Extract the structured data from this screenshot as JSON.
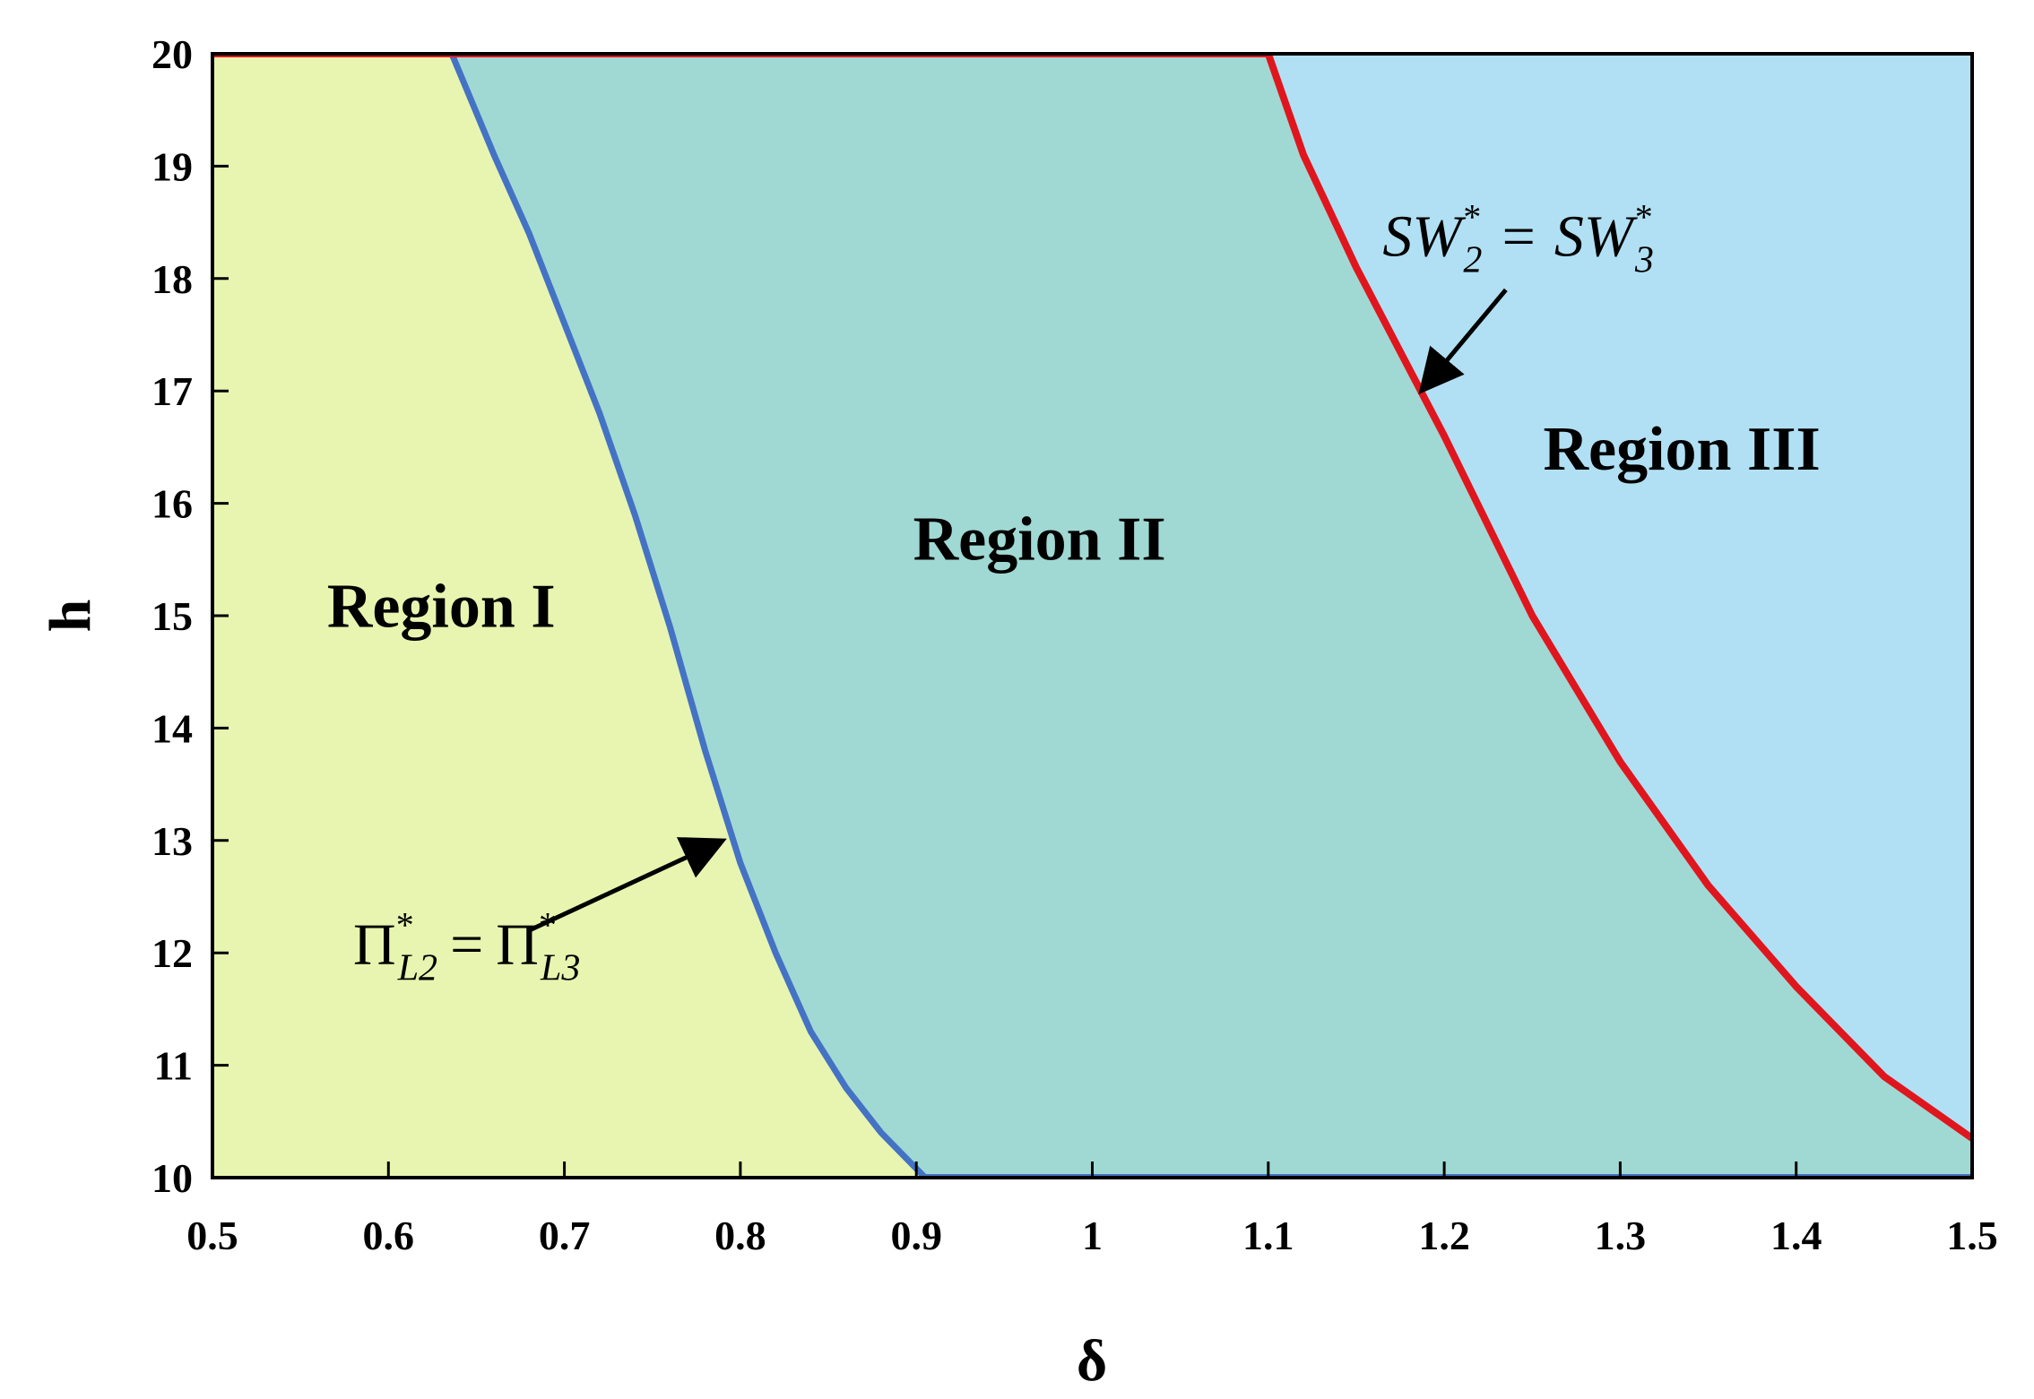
{
  "chart_data": {
    "type": "area",
    "xlabel": "δ",
    "ylabel": "h",
    "xlim": [
      0.5,
      1.5
    ],
    "ylim": [
      10,
      20
    ],
    "x_ticks": [
      "0.5",
      "0.6",
      "0.7",
      "0.8",
      "0.9",
      "1",
      "1.1",
      "1.2",
      "1.3",
      "1.4",
      "1.5"
    ],
    "y_ticks": [
      "10",
      "11",
      "12",
      "13",
      "14",
      "15",
      "16",
      "17",
      "18",
      "19",
      "20"
    ],
    "grid": false,
    "series": [
      {
        "color": "#4472c4",
        "points": [
          [
            0.636,
            20
          ],
          [
            0.66,
            19.1
          ],
          [
            0.68,
            18.4
          ],
          [
            0.7,
            17.6
          ],
          [
            0.72,
            16.8
          ],
          [
            0.74,
            15.9
          ],
          [
            0.76,
            14.9
          ],
          [
            0.78,
            13.8
          ],
          [
            0.8,
            12.8
          ],
          [
            0.82,
            12.0
          ],
          [
            0.84,
            11.3
          ],
          [
            0.86,
            10.8
          ],
          [
            0.88,
            10.4
          ],
          [
            0.905,
            10
          ]
        ]
      },
      {
        "color": "#e0161e",
        "points": [
          [
            1.1,
            20
          ],
          [
            1.12,
            19.1
          ],
          [
            1.15,
            18.1
          ],
          [
            1.18,
            17.2
          ],
          [
            1.2,
            16.6
          ],
          [
            1.25,
            15.0
          ],
          [
            1.3,
            13.7
          ],
          [
            1.35,
            12.6
          ],
          [
            1.4,
            11.7
          ],
          [
            1.45,
            10.9
          ],
          [
            1.5,
            10.35
          ]
        ]
      }
    ],
    "region_colors": {
      "region_1": "#e8f5b0",
      "region_2": "#a0d9d3",
      "region_3": "#b1e0f4"
    },
    "regions": [
      {
        "label": "Region I",
        "x": 0.63,
        "y": 14.9
      },
      {
        "label": "Region II",
        "x": 0.97,
        "y": 15.5
      },
      {
        "label": "Region III",
        "x": 1.335,
        "y": 16.3
      }
    ],
    "annotations": [
      {
        "id": "pi",
        "symbol": "Π",
        "subscript_left": "L2",
        "subscript_right": "L3",
        "superscript": "*",
        "equals": "=",
        "text_anchor": [
          0.58,
          11.9
        ],
        "arrow_from": [
          0.68,
          12.2
        ],
        "arrow_to": [
          0.79,
          13.0
        ]
      },
      {
        "id": "sw",
        "symbol": "SW",
        "subscript_left": "2",
        "subscript_right": "3",
        "superscript": "*",
        "equals": "=",
        "text_anchor": [
          1.165,
          18.2
        ],
        "arrow_from": [
          1.235,
          17.9
        ],
        "arrow_to": [
          1.187,
          17.0
        ]
      }
    ]
  }
}
